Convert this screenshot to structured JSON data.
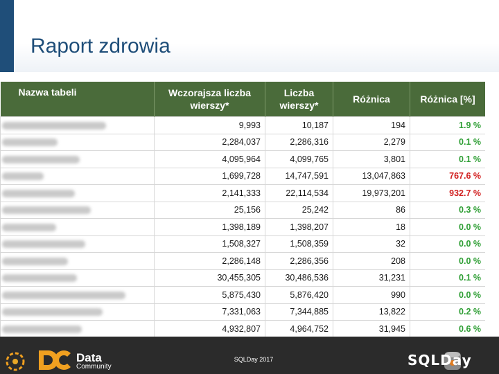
{
  "slide": {
    "title": "Raport zdrowia",
    "accent_color": "#1f4e79"
  },
  "table": {
    "headers": {
      "name": "Nazwa tabeli",
      "yesterday": "Wczorajsza liczba wierszy*",
      "current": "Liczba wierszy*",
      "diff": "Różnica",
      "diff_pct": "Różnica [%]"
    },
    "header_color": "#4a6b3a",
    "positive_color": "#2e9e34",
    "negative_color": "#d11f1f",
    "rows": [
      {
        "yesterday": "9,993",
        "current": "10,187",
        "diff": "194",
        "pct": "1.9 %",
        "status": "pos"
      },
      {
        "yesterday": "2,284,037",
        "current": "2,286,316",
        "diff": "2,279",
        "pct": "0.1 %",
        "status": "pos"
      },
      {
        "yesterday": "4,095,964",
        "current": "4,099,765",
        "diff": "3,801",
        "pct": "0.1 %",
        "status": "pos"
      },
      {
        "yesterday": "1,699,728",
        "current": "14,747,591",
        "diff": "13,047,863",
        "pct": "767.6 %",
        "status": "neg"
      },
      {
        "yesterday": "2,141,333",
        "current": "22,114,534",
        "diff": "19,973,201",
        "pct": "932.7 %",
        "status": "neg"
      },
      {
        "yesterday": "25,156",
        "current": "25,242",
        "diff": "86",
        "pct": "0.3 %",
        "status": "pos"
      },
      {
        "yesterday": "1,398,189",
        "current": "1,398,207",
        "diff": "18",
        "pct": "0.0 %",
        "status": "pos"
      },
      {
        "yesterday": "1,508,327",
        "current": "1,508,359",
        "diff": "32",
        "pct": "0.0 %",
        "status": "pos"
      },
      {
        "yesterday": "2,286,148",
        "current": "2,286,356",
        "diff": "208",
        "pct": "0.0 %",
        "status": "pos"
      },
      {
        "yesterday": "30,455,305",
        "current": "30,486,536",
        "diff": "31,231",
        "pct": "0.1 %",
        "status": "pos"
      },
      {
        "yesterday": "5,875,430",
        "current": "5,876,420",
        "diff": "990",
        "pct": "0.0 %",
        "status": "pos"
      },
      {
        "yesterday": "7,331,063",
        "current": "7,344,885",
        "diff": "13,822",
        "pct": "0.2 %",
        "status": "pos"
      },
      {
        "yesterday": "4,932,807",
        "current": "4,964,752",
        "diff": "31,945",
        "pct": "0.6 %",
        "status": "pos"
      }
    ]
  },
  "footer": {
    "brand_data": "Data",
    "brand_community": "Community",
    "event": "SQLDay 2017",
    "sqlday_logo_text": "SQLDay"
  }
}
